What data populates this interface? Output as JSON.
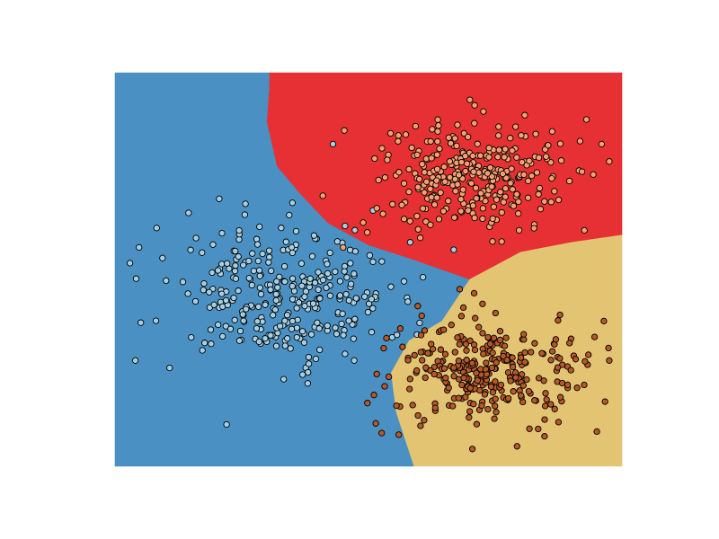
{
  "chart_data": {
    "type": "scatter",
    "title": "",
    "xlabel": "",
    "ylabel": "",
    "xlim": [
      0,
      10
    ],
    "ylim": [
      0,
      8
    ],
    "grid": false,
    "axes_visible": false,
    "decision_regions": [
      {
        "name": "blue-region",
        "color": "#4a90c2",
        "polygon": [
          [
            0,
            0
          ],
          [
            5.9,
            0
          ],
          [
            5.55,
            1.1
          ],
          [
            5.45,
            1.9
          ],
          [
            5.8,
            2.55
          ],
          [
            6.45,
            2.95
          ],
          [
            7.0,
            3.8
          ],
          [
            5.9,
            4.2
          ],
          [
            5.0,
            4.5
          ],
          [
            4.2,
            4.95
          ],
          [
            3.65,
            5.55
          ],
          [
            3.2,
            6.1
          ],
          [
            3.0,
            7.0
          ],
          [
            3.05,
            7.7
          ],
          [
            3.05,
            8
          ],
          [
            0,
            8
          ]
        ]
      },
      {
        "name": "red-region",
        "color": "#e63033",
        "polygon": [
          [
            3.05,
            8
          ],
          [
            10,
            8
          ],
          [
            10,
            4.7
          ],
          [
            9.0,
            4.55
          ],
          [
            8.0,
            4.35
          ],
          [
            7.0,
            3.8
          ],
          [
            5.9,
            4.2
          ],
          [
            5.0,
            4.5
          ],
          [
            4.2,
            4.95
          ],
          [
            3.65,
            5.55
          ],
          [
            3.2,
            6.1
          ],
          [
            3.0,
            7.0
          ],
          [
            3.05,
            7.7
          ]
        ]
      },
      {
        "name": "yellow-region",
        "color": "#e3c473",
        "polygon": [
          [
            5.9,
            0
          ],
          [
            10,
            0
          ],
          [
            10,
            4.7
          ],
          [
            9.0,
            4.55
          ],
          [
            8.0,
            4.35
          ],
          [
            7.0,
            3.8
          ],
          [
            6.45,
            2.95
          ],
          [
            5.8,
            2.55
          ],
          [
            5.45,
            1.9
          ],
          [
            5.55,
            1.1
          ]
        ]
      }
    ],
    "series": [
      {
        "label": "class-0",
        "color": "#a6cfe3",
        "center": [
          3.3,
          3.5
        ],
        "spread": [
          1.15,
          0.7
        ],
        "n": 300
      },
      {
        "label": "class-1",
        "color": "#f4a072",
        "center": [
          7.0,
          5.9
        ],
        "spread": [
          0.95,
          0.55
        ],
        "n": 300
      },
      {
        "label": "class-2",
        "color": "#b5582a",
        "center": [
          7.3,
          1.9
        ],
        "spread": [
          0.95,
          0.52
        ],
        "n": 300
      }
    ],
    "extra_points": [
      {
        "x": 1.45,
        "y": 5.15,
        "class": 0
      },
      {
        "x": 0.4,
        "y": 2.15,
        "class": 0
      },
      {
        "x": 2.2,
        "y": 0.85,
        "class": 0
      },
      {
        "x": 4.3,
        "y": 6.55,
        "class": 0
      },
      {
        "x": 7.0,
        "y": 7.45,
        "class": 1
      },
      {
        "x": 9.3,
        "y": 7.05,
        "class": 1
      },
      {
        "x": 9.6,
        "y": 6.55,
        "class": 1
      },
      {
        "x": 4.5,
        "y": 4.45,
        "class": 1
      },
      {
        "x": 4.1,
        "y": 5.5,
        "class": 1
      },
      {
        "x": 6.8,
        "y": 3.6,
        "class": 2
      },
      {
        "x": 7.25,
        "y": 3.3,
        "class": 2
      },
      {
        "x": 7.05,
        "y": 0.35,
        "class": 2
      },
      {
        "x": 5.3,
        "y": 2.4,
        "class": 2
      }
    ]
  }
}
